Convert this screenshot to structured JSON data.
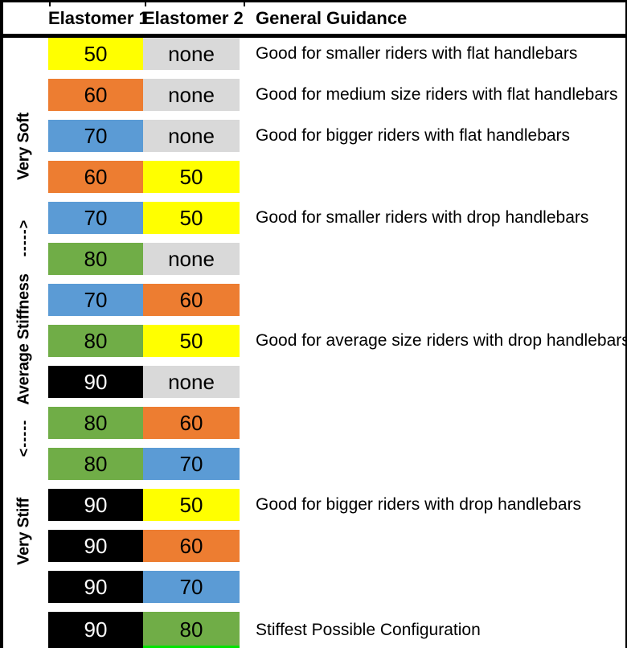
{
  "palette": {
    "yellow": "#FFFF00",
    "orange": "#ED7D31",
    "blue": "#5B9BD5",
    "green": "#70AD47",
    "black": "#000000",
    "gray": "#D9D9D9",
    "bright_green": "#00E400",
    "number_on_black": "#FFFFFF",
    "text": "#000000"
  },
  "chart_data": {
    "type": "table",
    "columns": [
      "Elastomer 1",
      "Elastomer 2",
      "General Guidance"
    ],
    "stiffness_axis": [
      {
        "label": "Very Soft",
        "kind": "text"
      },
      {
        "label": "----->",
        "kind": "arrow"
      },
      {
        "label": "Average Stiffness",
        "kind": "text"
      },
      {
        "label": "<-----",
        "kind": "arrow"
      },
      {
        "label": "Very Stiff",
        "kind": "text"
      }
    ],
    "rows": [
      {
        "elastomer1": "50",
        "elastomer1_color": "yellow",
        "elastomer2": "none",
        "elastomer2_color": "gray",
        "guidance": "Good for smaller riders with flat handlebars"
      },
      {
        "elastomer1": "60",
        "elastomer1_color": "orange",
        "elastomer2": "none",
        "elastomer2_color": "gray",
        "guidance": "Good for medium size riders with flat handlebars"
      },
      {
        "elastomer1": "70",
        "elastomer1_color": "blue",
        "elastomer2": "none",
        "elastomer2_color": "gray",
        "guidance": "Good for bigger riders with flat handlebars"
      },
      {
        "elastomer1": "60",
        "elastomer1_color": "orange",
        "elastomer2": "50",
        "elastomer2_color": "yellow",
        "guidance": ""
      },
      {
        "elastomer1": "70",
        "elastomer1_color": "blue",
        "elastomer2": "50",
        "elastomer2_color": "yellow",
        "guidance": "Good for smaller riders with drop handlebars"
      },
      {
        "elastomer1": "80",
        "elastomer1_color": "green",
        "elastomer2": "none",
        "elastomer2_color": "gray",
        "guidance": ""
      },
      {
        "elastomer1": "70",
        "elastomer1_color": "blue",
        "elastomer2": "60",
        "elastomer2_color": "orange",
        "guidance": ""
      },
      {
        "elastomer1": "80",
        "elastomer1_color": "green",
        "elastomer2": "50",
        "elastomer2_color": "yellow",
        "guidance": "Good for average size riders with drop handlebars"
      },
      {
        "elastomer1": "90",
        "elastomer1_color": "black",
        "elastomer2": "none",
        "elastomer2_color": "gray",
        "guidance": ""
      },
      {
        "elastomer1": "80",
        "elastomer1_color": "green",
        "elastomer2": "60",
        "elastomer2_color": "orange",
        "guidance": ""
      },
      {
        "elastomer1": "80",
        "elastomer1_color": "green",
        "elastomer2": "70",
        "elastomer2_color": "blue",
        "guidance": ""
      },
      {
        "elastomer1": "90",
        "elastomer1_color": "black",
        "elastomer2": "50",
        "elastomer2_color": "yellow",
        "guidance": "Good for bigger riders with drop handlebars"
      },
      {
        "elastomer1": "90",
        "elastomer1_color": "black",
        "elastomer2": "60",
        "elastomer2_color": "orange",
        "guidance": ""
      },
      {
        "elastomer1": "90",
        "elastomer1_color": "black",
        "elastomer2": "70",
        "elastomer2_color": "blue",
        "guidance": ""
      },
      {
        "elastomer1": "90",
        "elastomer1_color": "black",
        "elastomer2": "80",
        "elastomer2_color": "green",
        "guidance": "Stiffest Possible Configuration"
      }
    ]
  }
}
